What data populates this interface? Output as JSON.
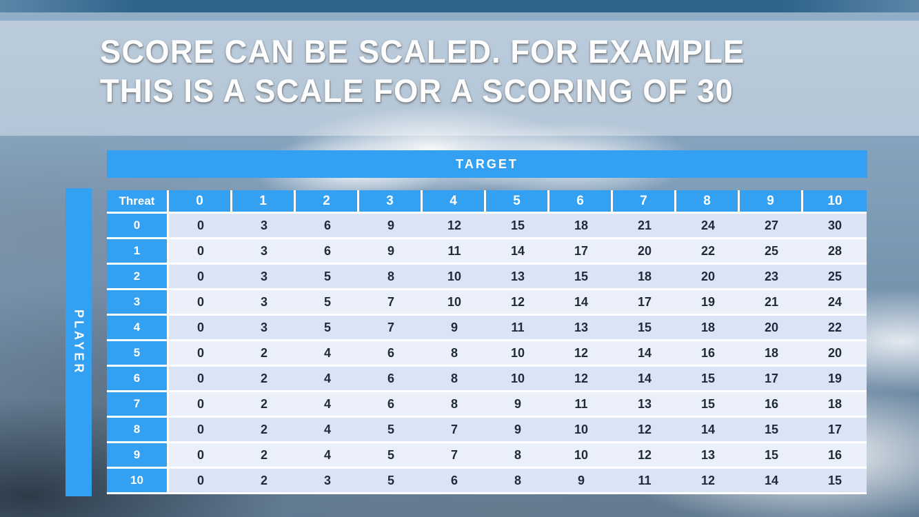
{
  "slide": {
    "title_line1": "SCORE CAN BE SCALED. FOR EXAMPLE",
    "title_line2": "THIS IS A SCALE FOR A SCORING OF 30"
  },
  "table": {
    "target_label": "TARGET",
    "player_label": "PLAYER",
    "corner_label": "Threat",
    "column_headers": [
      "0",
      "1",
      "2",
      "3",
      "4",
      "5",
      "6",
      "7",
      "8",
      "9",
      "10"
    ],
    "rows": [
      {
        "label": "0",
        "values": [
          0,
          3,
          6,
          9,
          12,
          15,
          18,
          21,
          24,
          27,
          30
        ]
      },
      {
        "label": "1",
        "values": [
          0,
          3,
          6,
          9,
          11,
          14,
          17,
          20,
          22,
          25,
          28
        ]
      },
      {
        "label": "2",
        "values": [
          0,
          3,
          5,
          8,
          10,
          13,
          15,
          18,
          20,
          23,
          25
        ]
      },
      {
        "label": "3",
        "values": [
          0,
          3,
          5,
          7,
          10,
          12,
          14,
          17,
          19,
          21,
          24
        ]
      },
      {
        "label": "4",
        "values": [
          0,
          3,
          5,
          7,
          9,
          11,
          13,
          15,
          18,
          20,
          22
        ]
      },
      {
        "label": "5",
        "values": [
          0,
          2,
          4,
          6,
          8,
          10,
          12,
          14,
          16,
          18,
          20
        ]
      },
      {
        "label": "6",
        "values": [
          0,
          2,
          4,
          6,
          8,
          10,
          12,
          14,
          15,
          17,
          19
        ]
      },
      {
        "label": "7",
        "values": [
          0,
          2,
          4,
          6,
          8,
          9,
          11,
          13,
          15,
          16,
          18
        ]
      },
      {
        "label": "8",
        "values": [
          0,
          2,
          4,
          5,
          7,
          9,
          10,
          12,
          14,
          15,
          17
        ]
      },
      {
        "label": "9",
        "values": [
          0,
          2,
          4,
          5,
          7,
          8,
          10,
          12,
          13,
          15,
          16
        ]
      },
      {
        "label": "10",
        "values": [
          0,
          2,
          3,
          5,
          6,
          8,
          9,
          11,
          12,
          14,
          15
        ]
      }
    ]
  },
  "colors": {
    "accent_blue": "#33a0f2",
    "row_stripe_dark": "#dbe4f5",
    "row_stripe_light": "#eaeffa",
    "top_strip": "#2f6389",
    "cell_text": "#1f2a38"
  }
}
